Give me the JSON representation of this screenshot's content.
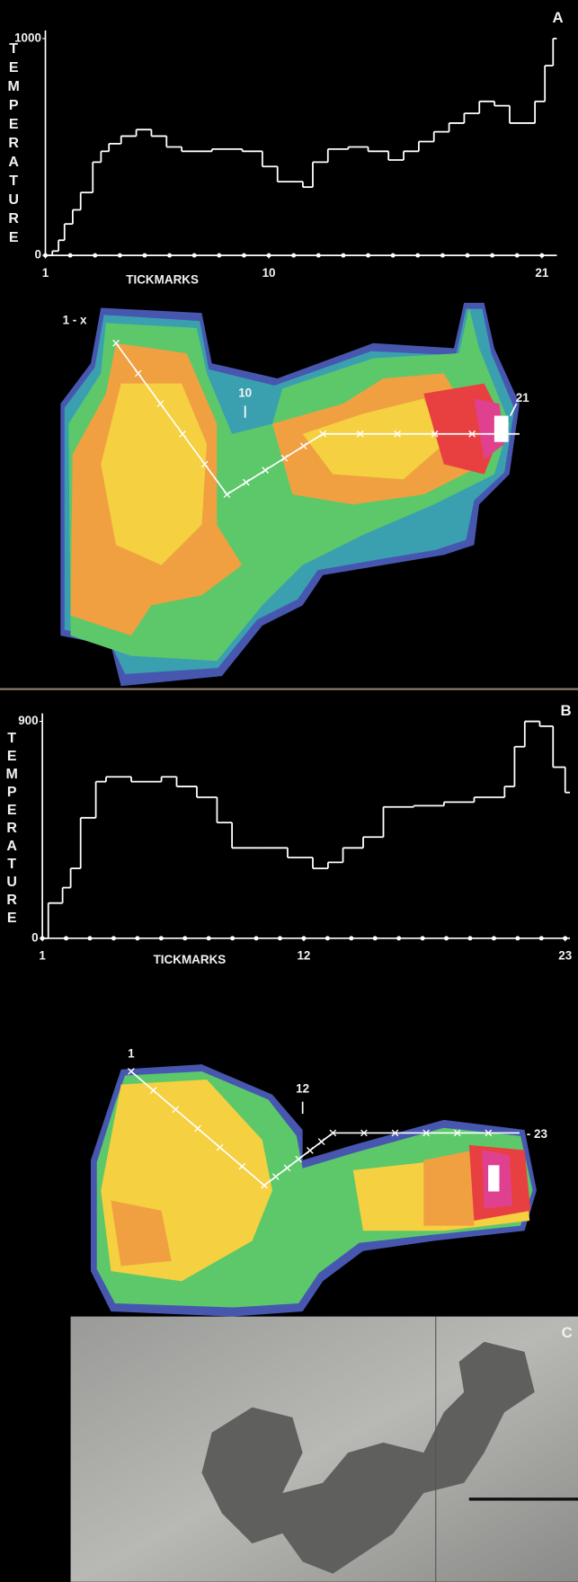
{
  "chart_data": [
    {
      "type": "line",
      "step": true,
      "x_label": "TICKMARKS",
      "y_label": "TEMPERATURE",
      "color": "#ffffff",
      "x": [
        1,
        1.28,
        1.53,
        1.77,
        2.1,
        2.42,
        2.91,
        3.24,
        3.56,
        4.05,
        4.66,
        5.27,
        5.88,
        6.49,
        7.71,
        8.93,
        9.74,
        10.35,
        11.37,
        11.77,
        12.38,
        13.2,
        14.0,
        14.82,
        15.43,
        16.04,
        16.65,
        17.26,
        17.87,
        18.48,
        19.09,
        19.7,
        20.72,
        21.12,
        21.45
      ],
      "values": [
        0,
        20,
        70,
        145,
        210,
        290,
        430,
        480,
        515,
        550,
        580,
        550,
        500,
        480,
        490,
        480,
        410,
        340,
        315,
        430,
        490,
        500,
        480,
        440,
        480,
        525,
        570,
        610,
        655,
        710,
        690,
        610,
        710,
        875,
        1000
      ],
      "xlim": [
        1,
        21.6
      ],
      "ylim": [
        0,
        1000
      ],
      "xticks": [
        1,
        10,
        21
      ],
      "yticks": [
        0,
        1000
      ]
    },
    {
      "type": "line",
      "step": true,
      "x_label": "TICKMARKS",
      "y_label": "TEMPERATURE",
      "color": "#ffffff",
      "x": [
        1,
        1.25,
        1.85,
        2.19,
        2.61,
        3.25,
        3.68,
        4.74,
        6.01,
        6.65,
        7.5,
        8.35,
        8.98,
        10.26,
        11.32,
        12.38,
        13.02,
        13.65,
        14.5,
        15.35,
        16.63,
        17.9,
        19.17,
        20.45,
        20.87,
        21.3,
        21.93,
        22.49,
        23
      ],
      "values": [
        0,
        146,
        210,
        290,
        500,
        650,
        670,
        650,
        670,
        630,
        585,
        480,
        375,
        375,
        335,
        290,
        315,
        375,
        420,
        545,
        550,
        565,
        585,
        630,
        795,
        900,
        880,
        710,
        605
      ],
      "xlim": [
        1,
        23.2
      ],
      "ylim": [
        0,
        900
      ],
      "xticks": [
        1,
        12,
        23
      ],
      "yticks": [
        0,
        900
      ]
    }
  ],
  "panel_labels": [
    "A",
    "B",
    "C"
  ],
  "maps": [
    {
      "start_label": "1 - x",
      "mid_label": "10",
      "end_label": "21"
    },
    {
      "start_label": "1",
      "mid_label": "12",
      "end_label": "- 23"
    }
  ]
}
